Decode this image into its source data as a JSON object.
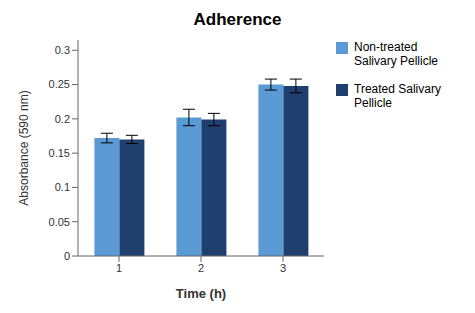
{
  "chart_data": {
    "type": "bar",
    "title": "Adherence",
    "x_label": "Time (h)",
    "y_label": "Absorbance (590 nm)",
    "categories": [
      "1",
      "2",
      "3"
    ],
    "series": [
      {
        "name": "Non-treated\nSalivary Pellicle",
        "color": "#5B9BD5",
        "values": [
          0.172,
          0.202,
          0.25
        ],
        "errors": [
          0.007,
          0.012,
          0.008
        ]
      },
      {
        "name": "Treated Salivary\nPellicle",
        "color": "#1F3F6E",
        "values": [
          0.17,
          0.199,
          0.248
        ],
        "errors": [
          0.006,
          0.009,
          0.01
        ]
      }
    ],
    "ylim": [
      0,
      0.315
    ],
    "yticks": [
      0,
      0.05,
      0.1,
      0.15,
      0.2,
      0.25,
      0.3
    ],
    "grid": false,
    "legend": "right"
  }
}
